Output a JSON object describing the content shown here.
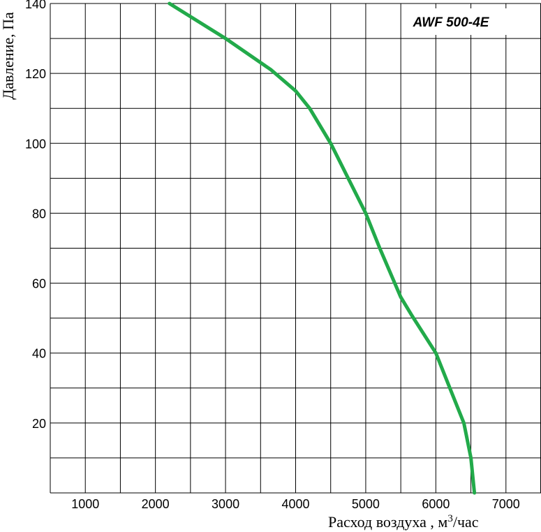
{
  "chart_data": {
    "type": "line",
    "title": "AWF 500-4E",
    "xlabel": "Расход воздуха , м3/час",
    "xlabel_main": "Расход воздуха , м",
    "xlabel_sup": "3",
    "xlabel_tail": "/час",
    "ylabel": "Давление, Па",
    "xlim": [
      500,
      7500
    ],
    "ylim": [
      0,
      140
    ],
    "x_ticks": [
      1000,
      2000,
      3000,
      4000,
      5000,
      6000,
      7000
    ],
    "x_tick_labels": [
      "1000",
      "2000",
      "3000",
      "4000",
      "5000",
      "6000",
      "7000"
    ],
    "y_ticks": [
      20,
      40,
      60,
      80,
      100,
      120,
      140
    ],
    "y_tick_labels": [
      "20",
      "40",
      "60",
      "80",
      "100",
      "120",
      "140"
    ],
    "grid": true,
    "series": [
      {
        "color": "#22aa4a",
        "x": [
          2200,
          3000,
          3650,
          4000,
          4200,
          4500,
          4750,
          5000,
          5200,
          5500,
          5650,
          6000,
          6200,
          6400,
          6500,
          6550
        ],
        "y": [
          140,
          130,
          121,
          115,
          110,
          100,
          90,
          80,
          70,
          56,
          51,
          40,
          30,
          20,
          10,
          0
        ]
      }
    ]
  }
}
